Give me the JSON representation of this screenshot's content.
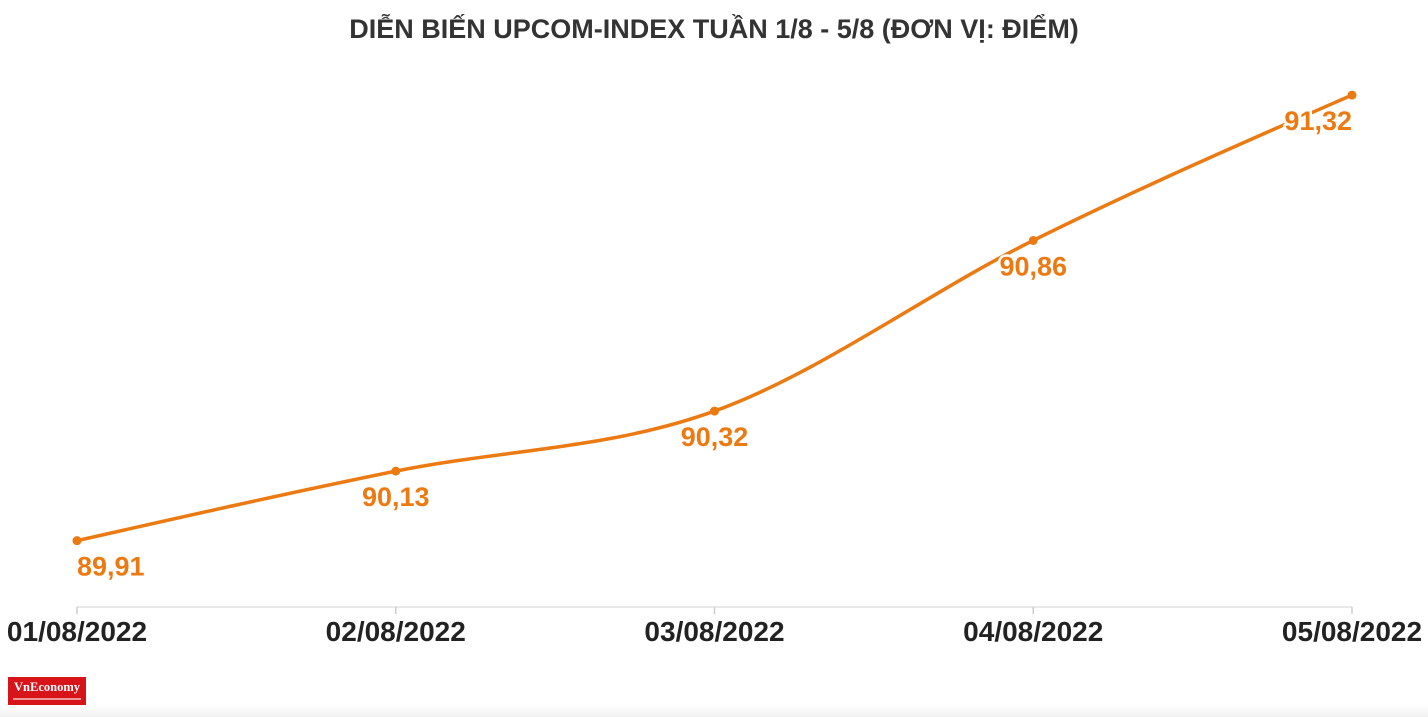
{
  "colors": {
    "line": "#EC7A12",
    "axis": "#E2E2E2",
    "tick": "#CCCCCC",
    "logo_bg": "#D7141A"
  },
  "chart_data": {
    "type": "line",
    "title": "DIỄN BIẾN UPCOM-INDEX TUẦN 1/8 - 5/8 (ĐƠN VỊ: ĐIỂM)",
    "xlabel": "",
    "ylabel": "",
    "categories": [
      "01/08/2022",
      "02/08/2022",
      "03/08/2022",
      "04/08/2022",
      "05/08/2022"
    ],
    "series": [
      {
        "values": [
          89.91,
          90.13,
          90.32,
          90.86,
          91.32
        ],
        "labels": [
          "89,91",
          "90,13",
          "90,32",
          "90,86",
          "91,32"
        ]
      }
    ],
    "ylim": [
      89.7,
      91.45
    ],
    "grid": false,
    "legend": "none",
    "curve": "smooth",
    "data_labels": true
  },
  "logo": {
    "text": "VnEconomy"
  }
}
